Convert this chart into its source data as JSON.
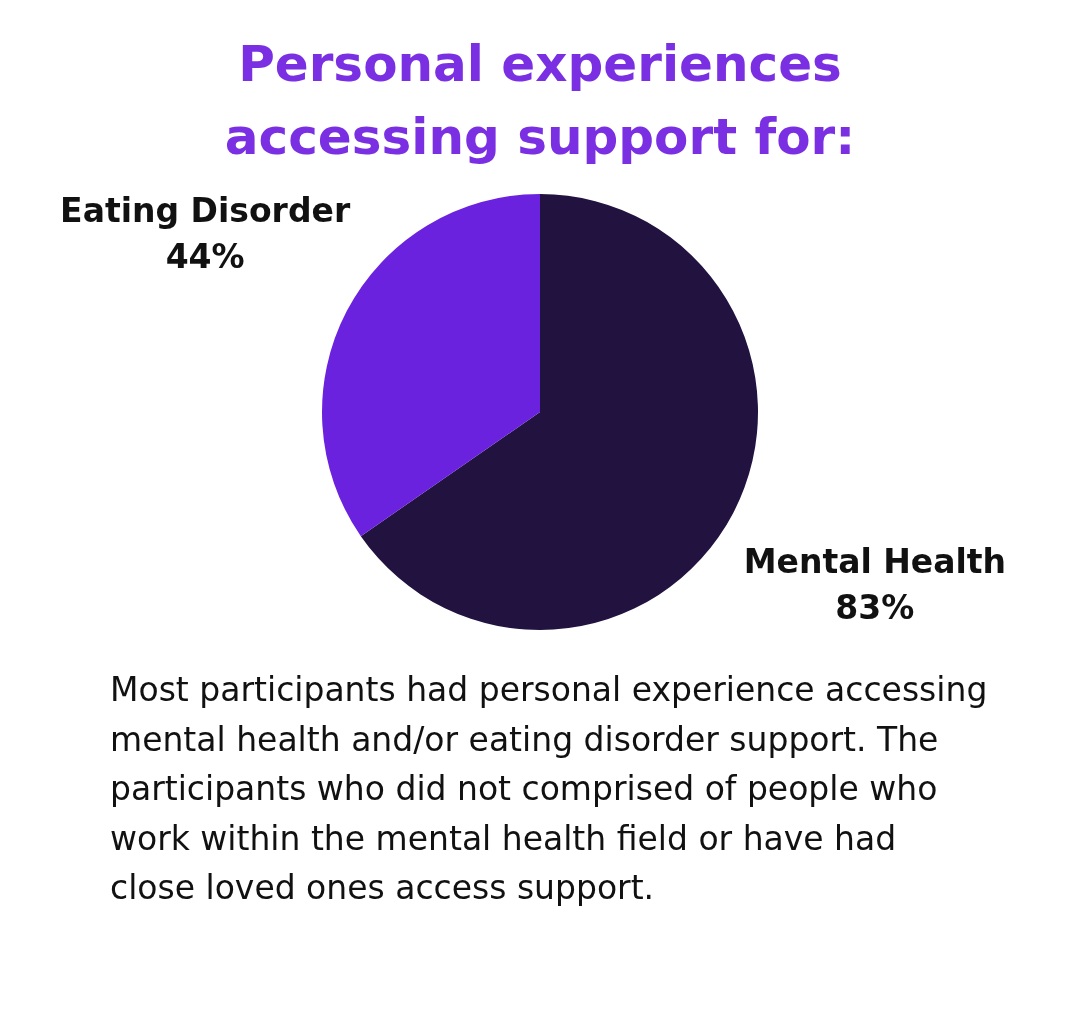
{
  "chart_data": {
    "type": "pie",
    "title": "Personal experiences accessing support for:",
    "categories": [
      "Mental Health",
      "Eating Disorder"
    ],
    "values": [
      83,
      44
    ],
    "value_labels": [
      "83%",
      "44%"
    ],
    "colors": [
      "#211240",
      "#6b22df"
    ],
    "legend": false,
    "annotations": [
      "Most participants had personal experience accessing mental health and/or eating disorder support. The participants who did not comprised of people who work within the mental health field or have had close loved ones access support."
    ]
  }
}
